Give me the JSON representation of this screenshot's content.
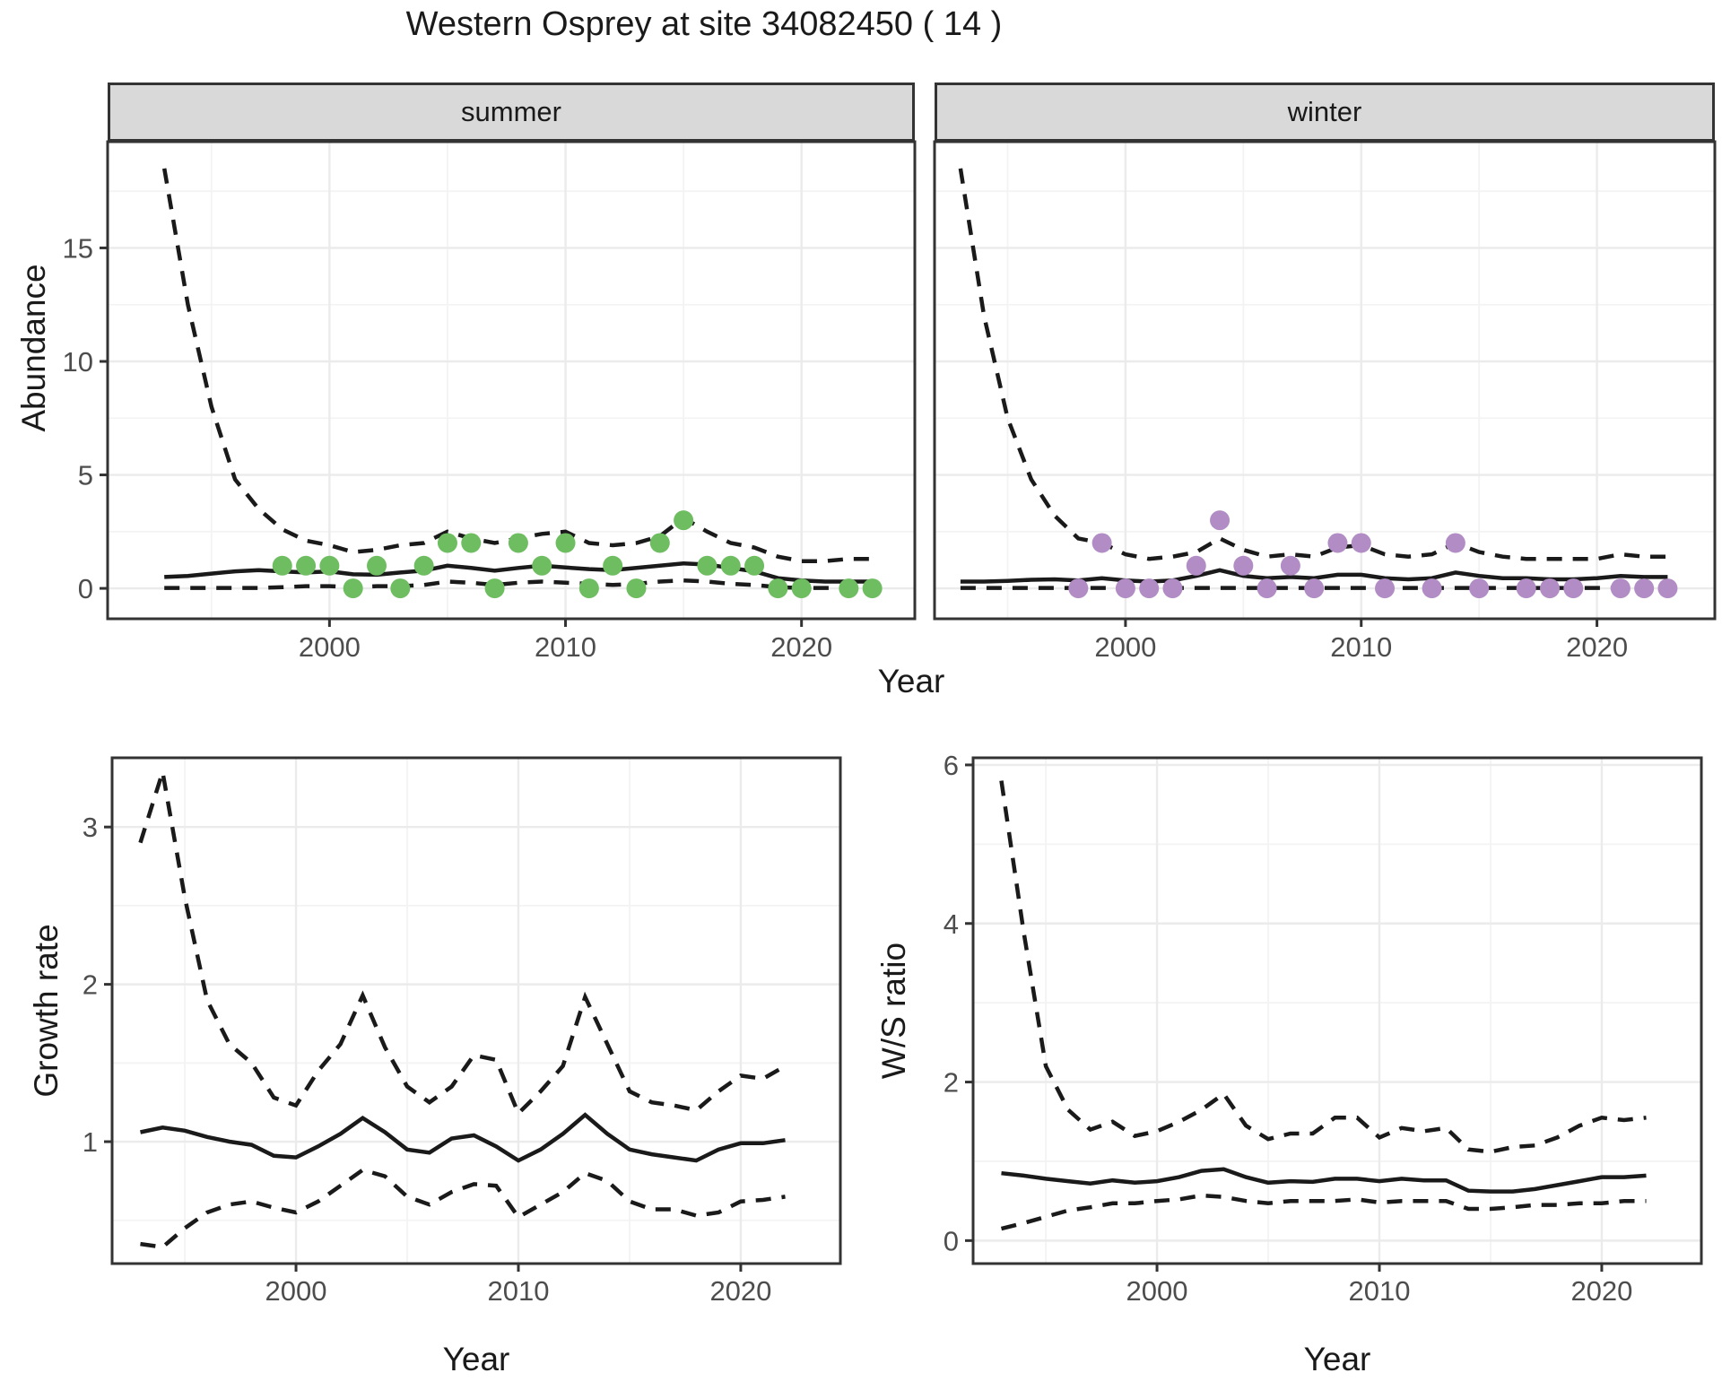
{
  "title": "Western Osprey at site 34082450 ( 14 )",
  "colors": {
    "summer_point": "#6EBD60",
    "winter_point": "#B28CC5",
    "line": "#1a1a1a",
    "grid_major": "#EBEBEB",
    "grid_minor": "#F3F3F3",
    "panel_border": "#333333",
    "strip_bg": "#D9D9D9",
    "tick_text": "#4D4D4D"
  },
  "labels": {
    "facet_summer": "summer",
    "facet_winter": "winter",
    "y_abundance": "Abundance",
    "y_growth": "Growth rate",
    "y_ws": "W/S ratio",
    "x_year_top": "Year",
    "x_year_growth": "Year",
    "x_year_ws": "Year"
  },
  "chart_data": [
    {
      "id": "abundance-summer",
      "type": "line+scatter",
      "facet": "summer",
      "xlabel": "Year",
      "ylabel": "Abundance",
      "x_ticks": [
        2000,
        2010,
        2020
      ],
      "x_minor": [
        1995,
        2005,
        2015
      ],
      "y_ticks": [
        0,
        5,
        10,
        15
      ],
      "y_minor": [
        2.5,
        7.5,
        12.5,
        17.5
      ],
      "x_range": [
        1990.6,
        2024.8
      ],
      "y_range": [
        -1.34,
        19.68
      ],
      "show_y_labels": true,
      "years": [
        1993,
        1994,
        1995,
        1996,
        1997,
        1998,
        1999,
        2000,
        2001,
        2002,
        2003,
        2004,
        2005,
        2006,
        2007,
        2008,
        2009,
        2010,
        2011,
        2012,
        2013,
        2014,
        2015,
        2016,
        2017,
        2018,
        2019,
        2020,
        2021,
        2022,
        2023
      ],
      "series": [
        {
          "name": "median",
          "style": "solid",
          "values": [
            0.5,
            0.55,
            0.65,
            0.75,
            0.8,
            0.75,
            0.7,
            0.75,
            0.62,
            0.6,
            0.7,
            0.78,
            1.0,
            0.9,
            0.78,
            0.9,
            1.0,
            0.92,
            0.85,
            0.8,
            0.9,
            1.0,
            1.1,
            1.05,
            0.9,
            0.75,
            0.45,
            0.35,
            0.3,
            0.3,
            0.3
          ]
        },
        {
          "name": "upper_ci",
          "style": "dashed",
          "values": [
            18.5,
            12.5,
            8.0,
            4.8,
            3.5,
            2.6,
            2.1,
            1.9,
            1.6,
            1.7,
            1.9,
            2.0,
            2.5,
            2.2,
            2.0,
            2.2,
            2.4,
            2.5,
            2.0,
            1.9,
            2.0,
            2.3,
            3.1,
            2.5,
            2.0,
            1.8,
            1.4,
            1.2,
            1.2,
            1.3,
            1.3
          ]
        },
        {
          "name": "lower_ci",
          "style": "dashed",
          "values": [
            0.02,
            0.02,
            0.02,
            0.02,
            0.02,
            0.05,
            0.1,
            0.1,
            0.05,
            0.1,
            0.1,
            0.15,
            0.3,
            0.25,
            0.15,
            0.25,
            0.3,
            0.25,
            0.2,
            0.15,
            0.2,
            0.3,
            0.35,
            0.3,
            0.2,
            0.15,
            0.05,
            0.02,
            0.02,
            0.02,
            0.02
          ]
        }
      ],
      "points": {
        "years": [
          1998,
          1999,
          2000,
          2001,
          2002,
          2003,
          2004,
          2005,
          2006,
          2007,
          2008,
          2009,
          2010,
          2011,
          2012,
          2013,
          2014,
          2015,
          2016,
          2017,
          2018,
          2019,
          2020,
          2022,
          2023
        ],
        "values": [
          1,
          1,
          1,
          0,
          1,
          0,
          1,
          2,
          2,
          0,
          2,
          1,
          2,
          0,
          1,
          0,
          2,
          3,
          1,
          1,
          1,
          0,
          0,
          0,
          0
        ],
        "color": "#6EBD60"
      }
    },
    {
      "id": "abundance-winter",
      "type": "line+scatter",
      "facet": "winter",
      "xlabel": "Year",
      "ylabel": "Abundance",
      "x_ticks": [
        2000,
        2010,
        2020
      ],
      "x_minor": [
        1995,
        2005,
        2015
      ],
      "y_ticks": [
        0,
        5,
        10,
        15
      ],
      "y_minor": [
        2.5,
        7.5,
        12.5,
        17.5
      ],
      "x_range": [
        1991.9,
        2025.0
      ],
      "y_range": [
        -1.34,
        19.68
      ],
      "show_y_labels": false,
      "years": [
        1993,
        1994,
        1995,
        1996,
        1997,
        1998,
        1999,
        2000,
        2001,
        2002,
        2003,
        2004,
        2005,
        2006,
        2007,
        2008,
        2009,
        2010,
        2011,
        2012,
        2013,
        2014,
        2015,
        2016,
        2017,
        2018,
        2019,
        2020,
        2021,
        2022,
        2023
      ],
      "series": [
        {
          "name": "median",
          "style": "solid",
          "values": [
            0.3,
            0.3,
            0.33,
            0.38,
            0.4,
            0.35,
            0.45,
            0.35,
            0.3,
            0.35,
            0.55,
            0.8,
            0.55,
            0.45,
            0.5,
            0.45,
            0.6,
            0.6,
            0.45,
            0.4,
            0.45,
            0.7,
            0.55,
            0.45,
            0.45,
            0.4,
            0.4,
            0.45,
            0.55,
            0.5,
            0.5
          ]
        },
        {
          "name": "upper_ci",
          "style": "dashed",
          "values": [
            18.5,
            12.0,
            7.5,
            4.8,
            3.2,
            2.2,
            2.0,
            1.5,
            1.3,
            1.4,
            1.6,
            2.2,
            1.7,
            1.4,
            1.5,
            1.4,
            1.8,
            1.9,
            1.5,
            1.4,
            1.5,
            2.0,
            1.6,
            1.4,
            1.3,
            1.3,
            1.3,
            1.3,
            1.5,
            1.4,
            1.4
          ]
        },
        {
          "name": "lower_ci",
          "style": "dashed",
          "values": [
            0.02,
            0.02,
            0.02,
            0.02,
            0.02,
            0.02,
            0.02,
            0.02,
            0.02,
            0.02,
            0.02,
            0.02,
            0.02,
            0.02,
            0.02,
            0.02,
            0.02,
            0.02,
            0.02,
            0.02,
            0.02,
            0.02,
            0.02,
            0.02,
            0.02,
            0.02,
            0.02,
            0.02,
            0.02,
            0.02,
            0.02
          ]
        }
      ],
      "points": {
        "years": [
          1998,
          1999,
          2000,
          2001,
          2002,
          2003,
          2004,
          2005,
          2006,
          2007,
          2008,
          2009,
          2010,
          2011,
          2013,
          2014,
          2015,
          2017,
          2018,
          2019,
          2021,
          2022,
          2023
        ],
        "values": [
          0,
          2,
          0,
          0,
          0,
          1,
          3,
          1,
          0,
          1,
          0,
          2,
          2,
          0,
          0,
          2,
          0,
          0,
          0,
          0,
          0,
          0,
          0
        ],
        "color": "#B28CC5"
      }
    },
    {
      "id": "growth-rate",
      "type": "line",
      "facet": null,
      "xlabel": "Year",
      "ylabel": "Growth rate",
      "x_ticks": [
        2000,
        2010,
        2020
      ],
      "x_minor": [
        1995,
        2005,
        2015
      ],
      "y_ticks": [
        1,
        2,
        3
      ],
      "y_minor": [
        0.5,
        1.5,
        2.5
      ],
      "x_range": [
        1991.73,
        2024.48
      ],
      "y_range": [
        0.225,
        3.44
      ],
      "show_y_labels": true,
      "years": [
        1993,
        1994,
        1995,
        1996,
        1997,
        1998,
        1999,
        2000,
        2001,
        2002,
        2003,
        2004,
        2005,
        2006,
        2007,
        2008,
        2009,
        2010,
        2011,
        2012,
        2013,
        2014,
        2015,
        2016,
        2017,
        2018,
        2019,
        2020,
        2021,
        2022
      ],
      "series": [
        {
          "name": "median",
          "style": "solid",
          "values": [
            1.06,
            1.09,
            1.07,
            1.03,
            1.0,
            0.98,
            0.91,
            0.9,
            0.97,
            1.05,
            1.15,
            1.06,
            0.95,
            0.93,
            1.02,
            1.04,
            0.97,
            0.88,
            0.95,
            1.05,
            1.17,
            1.05,
            0.95,
            0.92,
            0.9,
            0.88,
            0.95,
            0.99,
            0.99,
            1.01
          ]
        },
        {
          "name": "upper_ci",
          "style": "dashed",
          "values": [
            2.9,
            3.35,
            2.55,
            1.9,
            1.62,
            1.5,
            1.28,
            1.23,
            1.45,
            1.62,
            1.93,
            1.6,
            1.35,
            1.25,
            1.35,
            1.55,
            1.52,
            1.18,
            1.32,
            1.48,
            1.92,
            1.62,
            1.32,
            1.25,
            1.23,
            1.2,
            1.32,
            1.42,
            1.4,
            1.48
          ]
        },
        {
          "name": "lower_ci",
          "style": "dashed",
          "values": [
            0.35,
            0.33,
            0.45,
            0.55,
            0.6,
            0.62,
            0.58,
            0.55,
            0.62,
            0.72,
            0.82,
            0.78,
            0.65,
            0.6,
            0.68,
            0.73,
            0.72,
            0.52,
            0.6,
            0.68,
            0.8,
            0.75,
            0.62,
            0.57,
            0.57,
            0.53,
            0.55,
            0.62,
            0.63,
            0.65
          ]
        }
      ],
      "points": null
    },
    {
      "id": "ws-ratio",
      "type": "line",
      "facet": null,
      "xlabel": "Year",
      "ylabel": "W/S ratio",
      "x_ticks": [
        2000,
        2010,
        2020
      ],
      "x_minor": [
        1995,
        2005,
        2015
      ],
      "y_ticks": [
        0,
        2,
        4,
        6
      ],
      "y_minor": [
        1,
        3,
        5
      ],
      "x_range": [
        1991.73,
        2024.48
      ],
      "y_range": [
        -0.29,
        6.09
      ],
      "show_y_labels": true,
      "years": [
        1993,
        1994,
        1995,
        1996,
        1997,
        1998,
        1999,
        2000,
        2001,
        2002,
        2003,
        2004,
        2005,
        2006,
        2007,
        2008,
        2009,
        2010,
        2011,
        2012,
        2013,
        2014,
        2015,
        2016,
        2017,
        2018,
        2019,
        2020,
        2021,
        2022
      ],
      "series": [
        {
          "name": "median",
          "style": "solid",
          "values": [
            0.85,
            0.82,
            0.78,
            0.75,
            0.72,
            0.76,
            0.73,
            0.75,
            0.8,
            0.88,
            0.9,
            0.8,
            0.73,
            0.75,
            0.74,
            0.78,
            0.78,
            0.75,
            0.78,
            0.76,
            0.76,
            0.63,
            0.62,
            0.62,
            0.65,
            0.7,
            0.75,
            0.8,
            0.8,
            0.82
          ]
        },
        {
          "name": "upper_ci",
          "style": "dashed",
          "values": [
            5.8,
            3.9,
            2.2,
            1.65,
            1.4,
            1.5,
            1.32,
            1.38,
            1.5,
            1.65,
            1.85,
            1.45,
            1.28,
            1.35,
            1.35,
            1.55,
            1.55,
            1.3,
            1.42,
            1.38,
            1.42,
            1.15,
            1.12,
            1.18,
            1.2,
            1.3,
            1.45,
            1.55,
            1.52,
            1.55
          ]
        },
        {
          "name": "lower_ci",
          "style": "dashed",
          "values": [
            0.15,
            0.22,
            0.3,
            0.38,
            0.42,
            0.47,
            0.47,
            0.5,
            0.52,
            0.57,
            0.55,
            0.5,
            0.47,
            0.5,
            0.5,
            0.5,
            0.52,
            0.48,
            0.5,
            0.5,
            0.5,
            0.4,
            0.4,
            0.42,
            0.45,
            0.45,
            0.47,
            0.47,
            0.5,
            0.5
          ]
        }
      ],
      "points": null
    }
  ]
}
